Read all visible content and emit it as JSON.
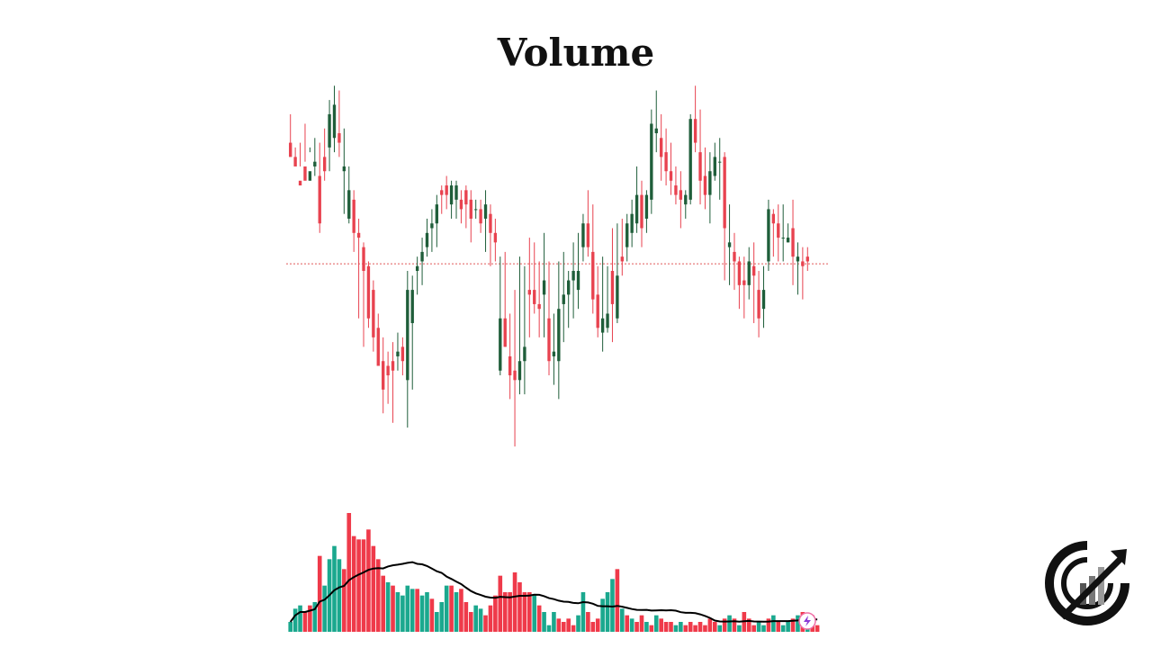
{
  "page": {
    "title": "Volume"
  },
  "colors": {
    "bull": "#1f5e3a",
    "bear": "#e8424f",
    "vol_bull": "#1ba88e",
    "vol_bear": "#ef3a4a",
    "ma": "#000000",
    "ref_line": "#e05a5a"
  },
  "icons": {
    "corner_badge": "lightning-bolt-icon",
    "logo": "chart-growth-logo"
  },
  "chart_data": {
    "type": "candlestick",
    "title": "Volume",
    "ohlc": [
      [
        97,
        94,
        103,
        95
      ],
      [
        94,
        92,
        96,
        93
      ],
      [
        89,
        88,
        97,
        92
      ],
      [
        92,
        89,
        101,
        93
      ],
      [
        89,
        91,
        96,
        95
      ],
      [
        92,
        93,
        98,
        90
      ],
      [
        90,
        80,
        97,
        78
      ],
      [
        94,
        91,
        100,
        89
      ],
      [
        96,
        103,
        106,
        91
      ],
      [
        98,
        105,
        109,
        95
      ],
      [
        99,
        97,
        108,
        94
      ],
      [
        91,
        92,
        100,
        82
      ],
      [
        81,
        87,
        92,
        80
      ],
      [
        85,
        78,
        87,
        74
      ],
      [
        78,
        77,
        81,
        60
      ],
      [
        75,
        70,
        76,
        54
      ],
      [
        71,
        60,
        72,
        58
      ],
      [
        66,
        56,
        68,
        53
      ],
      [
        58,
        50,
        61,
        50
      ],
      [
        51,
        45,
        56,
        40
      ],
      [
        50,
        48,
        53,
        42
      ],
      [
        51,
        49,
        55,
        38
      ],
      [
        52,
        53,
        57,
        49
      ],
      [
        54,
        51,
        56,
        48
      ],
      [
        47,
        66,
        70,
        37
      ],
      [
        59,
        66,
        69,
        45
      ],
      [
        70,
        71,
        73,
        65
      ],
      [
        72,
        74,
        77,
        67
      ],
      [
        75,
        78,
        81,
        73
      ],
      [
        79,
        80,
        83,
        74
      ],
      [
        80,
        84,
        86,
        75
      ],
      [
        87,
        86,
        88,
        82
      ],
      [
        88,
        86,
        90,
        83
      ],
      [
        84,
        88,
        89,
        81
      ],
      [
        85,
        88,
        89,
        81
      ],
      [
        85,
        83,
        87,
        80
      ],
      [
        87,
        84,
        88,
        79
      ],
      [
        85,
        81,
        87,
        76
      ],
      [
        83,
        83,
        85,
        81
      ],
      [
        83,
        80,
        85,
        78
      ],
      [
        81,
        84,
        87,
        74
      ],
      [
        82,
        78,
        84,
        71
      ],
      [
        78,
        76,
        81,
        72
      ],
      [
        49,
        60,
        73,
        48
      ],
      [
        60,
        54,
        74,
        54
      ],
      [
        52,
        48,
        61,
        43
      ],
      [
        49,
        47,
        66,
        33
      ],
      [
        47,
        51,
        73,
        44
      ],
      [
        51,
        54,
        71,
        44
      ],
      [
        66,
        65,
        77,
        56
      ],
      [
        66,
        63,
        76,
        61
      ],
      [
        63,
        62,
        72,
        56
      ],
      [
        65,
        68,
        78,
        56
      ],
      [
        60,
        51,
        72,
        48
      ],
      [
        52,
        53,
        61,
        46
      ],
      [
        51,
        62,
        72,
        43
      ],
      [
        63,
        65,
        74,
        55
      ],
      [
        65,
        68,
        70,
        58
      ],
      [
        68,
        70,
        76,
        60
      ],
      [
        66,
        70,
        78,
        62
      ],
      [
        75,
        80,
        82,
        72
      ],
      [
        80,
        75,
        87,
        73
      ],
      [
        74,
        64,
        84,
        61
      ],
      [
        65,
        58,
        71,
        56
      ],
      [
        57,
        60,
        73,
        53
      ],
      [
        58,
        61,
        71,
        57
      ],
      [
        70,
        63,
        79,
        55
      ],
      [
        60,
        69,
        80,
        59
      ],
      [
        73,
        72,
        81,
        69
      ],
      [
        75,
        80,
        82,
        72
      ],
      [
        78,
        82,
        85,
        75
      ],
      [
        80,
        86,
        92,
        78
      ],
      [
        86,
        79,
        89,
        75
      ],
      [
        81,
        86,
        87,
        78
      ],
      [
        85,
        101,
        104,
        82
      ],
      [
        99,
        100,
        108,
        95
      ],
      [
        98,
        94,
        103,
        89
      ],
      [
        95,
        91,
        100,
        88
      ],
      [
        91,
        89,
        97,
        86
      ],
      [
        88,
        86,
        92,
        84
      ],
      [
        87,
        85,
        91,
        79
      ],
      [
        84,
        86,
        87,
        81
      ],
      [
        85,
        102,
        103,
        84
      ],
      [
        102,
        97,
        109,
        95
      ],
      [
        95,
        89,
        104,
        84
      ],
      [
        90,
        86,
        96,
        83
      ],
      [
        86,
        91,
        95,
        80
      ],
      [
        90,
        94,
        97,
        89
      ],
      [
        93,
        93,
        98,
        85
      ],
      [
        94,
        79,
        95,
        68
      ],
      [
        75,
        76,
        84,
        67
      ],
      [
        74,
        72,
        78,
        66
      ],
      [
        72,
        67,
        73,
        62
      ],
      [
        68,
        67,
        73,
        60
      ],
      [
        67,
        72,
        75,
        64
      ],
      [
        71,
        69,
        76,
        59
      ],
      [
        66,
        60,
        70,
        56
      ],
      [
        62,
        66,
        71,
        58
      ],
      [
        72,
        83,
        85,
        70
      ],
      [
        82,
        80,
        83,
        73
      ],
      [
        80,
        77,
        84,
        72
      ],
      [
        77,
        77,
        84,
        72
      ],
      [
        76,
        77,
        80,
        76
      ],
      [
        79,
        73,
        85,
        67
      ],
      [
        72,
        73,
        76,
        65
      ],
      [
        72,
        71,
        75,
        64
      ],
      [
        73,
        72,
        75,
        70
      ]
    ],
    "ref_price": 71.5,
    "ylim": [
      30,
      110
    ],
    "volume": [
      [
        3,
        1
      ],
      [
        7,
        1
      ],
      [
        8,
        1
      ],
      [
        6,
        0
      ],
      [
        8,
        0
      ],
      [
        9,
        1
      ],
      [
        23,
        0
      ],
      [
        14,
        1
      ],
      [
        22,
        1
      ],
      [
        26,
        1
      ],
      [
        22,
        1
      ],
      [
        19,
        0
      ],
      [
        36,
        0
      ],
      [
        29,
        0
      ],
      [
        28,
        0
      ],
      [
        28,
        0
      ],
      [
        31,
        0
      ],
      [
        26,
        0
      ],
      [
        22,
        0
      ],
      [
        17,
        0
      ],
      [
        15,
        1
      ],
      [
        14,
        0
      ],
      [
        12,
        1
      ],
      [
        11,
        1
      ],
      [
        14,
        1
      ],
      [
        13,
        1
      ],
      [
        13,
        0
      ],
      [
        11,
        1
      ],
      [
        12,
        1
      ],
      [
        10,
        0
      ],
      [
        6,
        1
      ],
      [
        9,
        1
      ],
      [
        14,
        1
      ],
      [
        14,
        0
      ],
      [
        12,
        1
      ],
      [
        13,
        0
      ],
      [
        9,
        0
      ],
      [
        6,
        0
      ],
      [
        8,
        1
      ],
      [
        7,
        1
      ],
      [
        5,
        0
      ],
      [
        8,
        0
      ],
      [
        11,
        0
      ],
      [
        17,
        0
      ],
      [
        12,
        0
      ],
      [
        12,
        0
      ],
      [
        18,
        0
      ],
      [
        15,
        0
      ],
      [
        12,
        0
      ],
      [
        12,
        0
      ],
      [
        11,
        1
      ],
      [
        8,
        0
      ],
      [
        6,
        1
      ],
      [
        2,
        1
      ],
      [
        6,
        1
      ],
      [
        4,
        0
      ],
      [
        3,
        0
      ],
      [
        4,
        0
      ],
      [
        2,
        0
      ],
      [
        5,
        1
      ],
      [
        12,
        1
      ],
      [
        6,
        0
      ],
      [
        3,
        0
      ],
      [
        4,
        0
      ],
      [
        10,
        1
      ],
      [
        12,
        1
      ],
      [
        16,
        1
      ],
      [
        19,
        0
      ],
      [
        7,
        1
      ],
      [
        5,
        0
      ],
      [
        4,
        1
      ],
      [
        3,
        0
      ],
      [
        5,
        0
      ],
      [
        3,
        1
      ],
      [
        2,
        0
      ],
      [
        5,
        1
      ],
      [
        4,
        0
      ],
      [
        3,
        0
      ],
      [
        3,
        0
      ],
      [
        2,
        1
      ],
      [
        3,
        1
      ],
      [
        2,
        0
      ],
      [
        3,
        0
      ],
      [
        2,
        0
      ],
      [
        3,
        0
      ],
      [
        2,
        0
      ],
      [
        4,
        0
      ],
      [
        3,
        0
      ],
      [
        2,
        1
      ],
      [
        4,
        0
      ],
      [
        5,
        1
      ],
      [
        4,
        0
      ],
      [
        2,
        1
      ],
      [
        6,
        0
      ],
      [
        4,
        0
      ],
      [
        2,
        0
      ],
      [
        3,
        1
      ],
      [
        2,
        1
      ],
      [
        4,
        0
      ],
      [
        5,
        1
      ],
      [
        3,
        0
      ],
      [
        2,
        1
      ],
      [
        3,
        1
      ],
      [
        4,
        0
      ],
      [
        5,
        1
      ],
      [
        6,
        0
      ],
      [
        4,
        1
      ],
      [
        5,
        0
      ],
      [
        2,
        0
      ]
    ],
    "volume_ma_visible": true
  }
}
